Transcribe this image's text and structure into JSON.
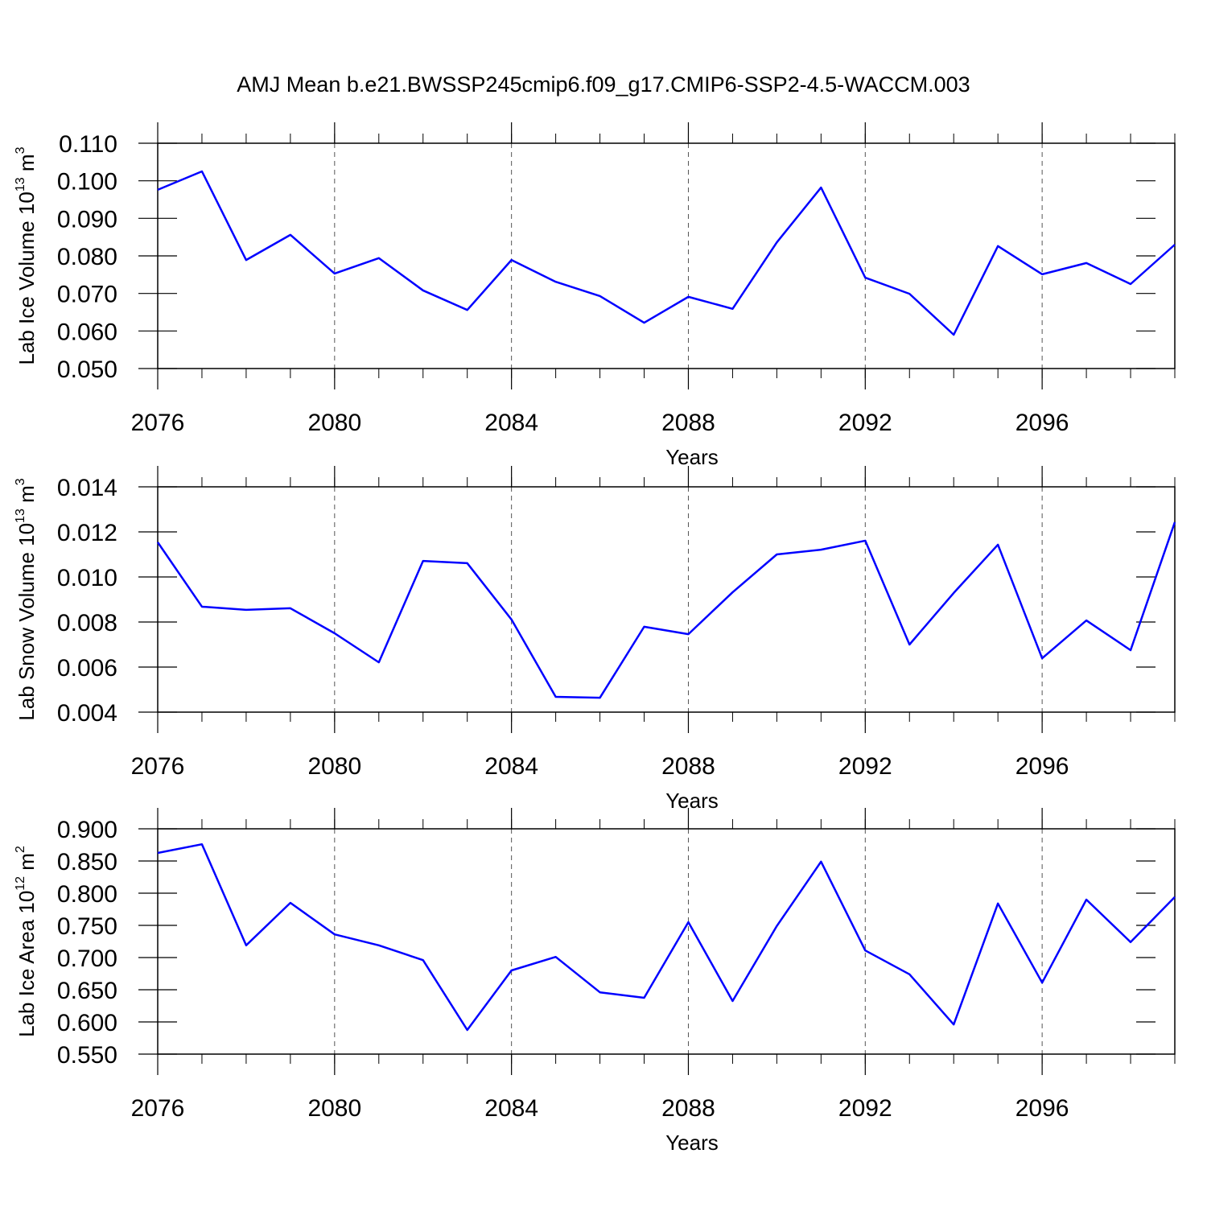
{
  "title": "AMJ Mean b.e21.BWSSP245cmip6.f09_g17.CMIP6-SSP2-4.5-WACCM.003",
  "chart_data": [
    {
      "type": "line",
      "ylabel": [
        "Lab Ice Volume 10",
        "13",
        " m",
        "3"
      ],
      "xlabel": "Years",
      "x": [
        2076,
        2077,
        2078,
        2079,
        2080,
        2081,
        2082,
        2083,
        2084,
        2085,
        2086,
        2087,
        2088,
        2089,
        2090,
        2091,
        2092,
        2093,
        2094,
        2095,
        2096,
        2097,
        2098,
        2099
      ],
      "series": [
        {
          "name": null,
          "color": "#0000ff",
          "values": [
            0.0976,
            0.1025,
            0.0789,
            0.0856,
            0.0753,
            0.0794,
            0.0708,
            0.0656,
            0.0789,
            0.0731,
            0.0693,
            0.0622,
            0.0691,
            0.0659,
            0.0836,
            0.0982,
            0.0742,
            0.0699,
            0.059,
            0.0826,
            0.0751,
            0.0781,
            0.0725,
            0.083
          ]
        }
      ],
      "xlim": [
        2076,
        2099
      ],
      "xticks": [
        2076,
        2080,
        2084,
        2088,
        2092,
        2096
      ],
      "ylim": [
        0.05,
        0.11
      ],
      "yticks": [
        {
          "value": 0.05,
          "label": "0.050"
        },
        {
          "value": 0.06,
          "label": "0.060"
        },
        {
          "value": 0.07,
          "label": "0.070"
        },
        {
          "value": 0.08,
          "label": "0.080"
        },
        {
          "value": 0.09,
          "label": "0.090"
        },
        {
          "value": 0.1,
          "label": "0.100"
        },
        {
          "value": 0.11,
          "label": "0.110"
        }
      ],
      "grid": true
    },
    {
      "type": "line",
      "ylabel": [
        "Lab Snow Volume 10",
        "13",
        " m",
        "3"
      ],
      "xlabel": "Years",
      "x": [
        2076,
        2077,
        2078,
        2079,
        2080,
        2081,
        2082,
        2083,
        2084,
        2085,
        2086,
        2087,
        2088,
        2089,
        2090,
        2091,
        2092,
        2093,
        2094,
        2095,
        2096,
        2097,
        2098,
        2099
      ],
      "series": [
        {
          "name": null,
          "color": "#0000ff",
          "values": [
            0.01154,
            0.00868,
            0.00854,
            0.00861,
            0.0075,
            0.00621,
            0.01071,
            0.01061,
            0.00811,
            0.00468,
            0.00464,
            0.00779,
            0.00746,
            0.00932,
            0.011,
            0.01121,
            0.01161,
            0.007,
            0.00929,
            0.01143,
            0.00639,
            0.00807,
            0.00675,
            0.01243
          ]
        }
      ],
      "xlim": [
        2076,
        2099
      ],
      "xticks": [
        2076,
        2080,
        2084,
        2088,
        2092,
        2096
      ],
      "ylim": [
        0.004,
        0.014
      ],
      "yticks": [
        {
          "value": 0.004,
          "label": "0.004"
        },
        {
          "value": 0.006,
          "label": "0.006"
        },
        {
          "value": 0.008,
          "label": "0.008"
        },
        {
          "value": 0.01,
          "label": "0.010"
        },
        {
          "value": 0.012,
          "label": "0.012"
        },
        {
          "value": 0.014,
          "label": "0.014"
        }
      ],
      "grid": true
    },
    {
      "type": "line",
      "ylabel": [
        "Lab Ice Area 10",
        "12",
        " m",
        "2"
      ],
      "xlabel": "Years",
      "x": [
        2076,
        2077,
        2078,
        2079,
        2080,
        2081,
        2082,
        2083,
        2084,
        2085,
        2086,
        2087,
        2088,
        2089,
        2090,
        2091,
        2092,
        2093,
        2094,
        2095,
        2096,
        2097,
        2098,
        2099
      ],
      "series": [
        {
          "name": null,
          "color": "#0000ff",
          "values": [
            0.8625,
            0.876,
            0.719,
            0.785,
            0.736,
            0.719,
            0.696,
            0.5875,
            0.68,
            0.701,
            0.646,
            0.6375,
            0.755,
            0.6325,
            0.749,
            0.849,
            0.711,
            0.674,
            0.596,
            0.784,
            0.661,
            0.79,
            0.724,
            0.794
          ]
        }
      ],
      "xlim": [
        2076,
        2099
      ],
      "xticks": [
        2076,
        2080,
        2084,
        2088,
        2092,
        2096
      ],
      "ylim": [
        0.55,
        0.9
      ],
      "yticks": [
        {
          "value": 0.55,
          "label": "0.550"
        },
        {
          "value": 0.6,
          "label": "0.600"
        },
        {
          "value": 0.65,
          "label": "0.650"
        },
        {
          "value": 0.7,
          "label": "0.700"
        },
        {
          "value": 0.75,
          "label": "0.750"
        },
        {
          "value": 0.8,
          "label": "0.800"
        },
        {
          "value": 0.85,
          "label": "0.850"
        },
        {
          "value": 0.9,
          "label": "0.900"
        }
      ],
      "grid": true
    }
  ]
}
